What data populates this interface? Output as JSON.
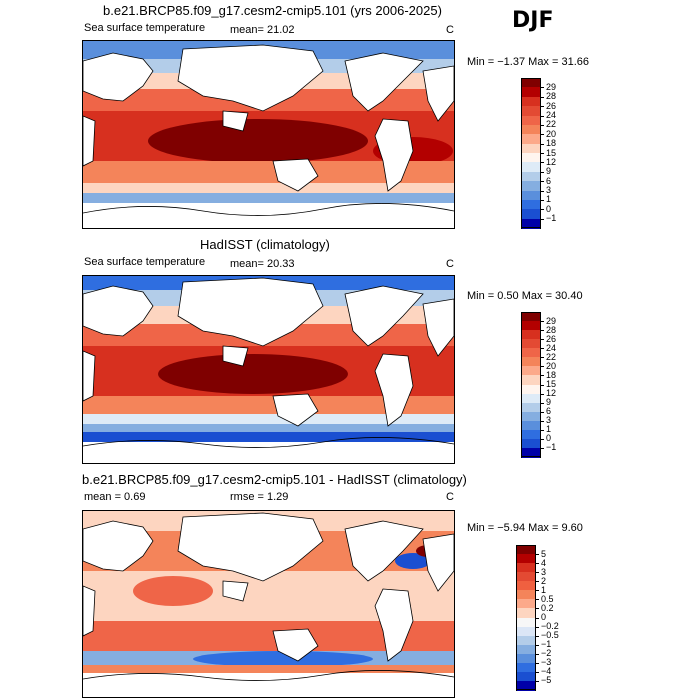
{
  "season": "DJF",
  "units_label": "C",
  "panels": [
    {
      "title": "b.e21.BRCP85.f09_g17.cesm2-cmip5.101 (yrs 2006-2025)",
      "left_label": "Sea surface temperature",
      "mean_text": "mean=  21.02",
      "rmse_text": "",
      "minmax": "Min =  −1.37 Max =  31.66",
      "kind": "abs"
    },
    {
      "title": "HadISST (climatology)",
      "left_label": "Sea surface temperature",
      "mean_text": "mean=  20.33",
      "rmse_text": "",
      "minmax": "Min =   0.50 Max =  30.40",
      "kind": "abs"
    },
    {
      "title": "b.e21.BRCP85.f09_g17.cesm2-cmip5.101 - HadISST (climatology)",
      "left_label": "mean =   0.69",
      "mean_text": "",
      "rmse_text": "rmse =   1.29",
      "minmax": "Min =  −5.94 Max =   9.60",
      "kind": "diff"
    }
  ],
  "chart_data": [
    {
      "type": "heatmap",
      "title": "b.e21.BRCP85.f09_g17.cesm2-cmip5.101 (yrs 2006-2025)",
      "variable": "Sea surface temperature",
      "units": "C",
      "mean": 21.02,
      "min": -1.37,
      "max": 31.66,
      "colorbar_levels": [
        "29",
        "28",
        "26",
        "24",
        "22",
        "20",
        "18",
        "15",
        "12",
        "9",
        "6",
        "3",
        "1",
        "0",
        "−1"
      ],
      "colorbar_colors": [
        "#7f0000",
        "#b30000",
        "#d7301f",
        "#e34a33",
        "#ef6548",
        "#f4845a",
        "#fca98a",
        "#fdd5c0",
        "#fff5ef",
        "#deebf7",
        "#b3cde9",
        "#85aee0",
        "#5a8fdc",
        "#2f6ee0",
        "#1a4fd1",
        "#0000a8"
      ]
    },
    {
      "type": "heatmap",
      "title": "HadISST (climatology)",
      "variable": "Sea surface temperature",
      "units": "C",
      "mean": 20.33,
      "min": 0.5,
      "max": 30.4,
      "colorbar_levels": [
        "29",
        "28",
        "26",
        "24",
        "22",
        "20",
        "18",
        "15",
        "12",
        "9",
        "6",
        "3",
        "1",
        "0",
        "−1"
      ],
      "colorbar_colors": [
        "#7f0000",
        "#b30000",
        "#d7301f",
        "#e34a33",
        "#ef6548",
        "#f4845a",
        "#fca98a",
        "#fdd5c0",
        "#fff5ef",
        "#deebf7",
        "#b3cde9",
        "#85aee0",
        "#5a8fdc",
        "#2f6ee0",
        "#1a4fd1",
        "#0000a8"
      ]
    },
    {
      "type": "heatmap",
      "title": "b.e21.BRCP85.f09_g17.cesm2-cmip5.101 - HadISST (climatology)",
      "units": "C",
      "mean": 0.69,
      "rmse": 1.29,
      "min": -5.94,
      "max": 9.6,
      "colorbar_levels": [
        "5",
        "4",
        "3",
        "2",
        "1",
        "0.5",
        "0.2",
        "0",
        "−0.2",
        "−0.5",
        "−1",
        "−2",
        "−3",
        "−4",
        "−5"
      ],
      "colorbar_colors": [
        "#7f0000",
        "#b30000",
        "#d7301f",
        "#e34a33",
        "#f06040",
        "#f4845a",
        "#fca98a",
        "#fdd5c0",
        "#f7f7f7",
        "#dbe6f6",
        "#b3cde9",
        "#85aee0",
        "#5a8fdc",
        "#2f6ee0",
        "#1a4fd1",
        "#0000a8"
      ]
    }
  ]
}
